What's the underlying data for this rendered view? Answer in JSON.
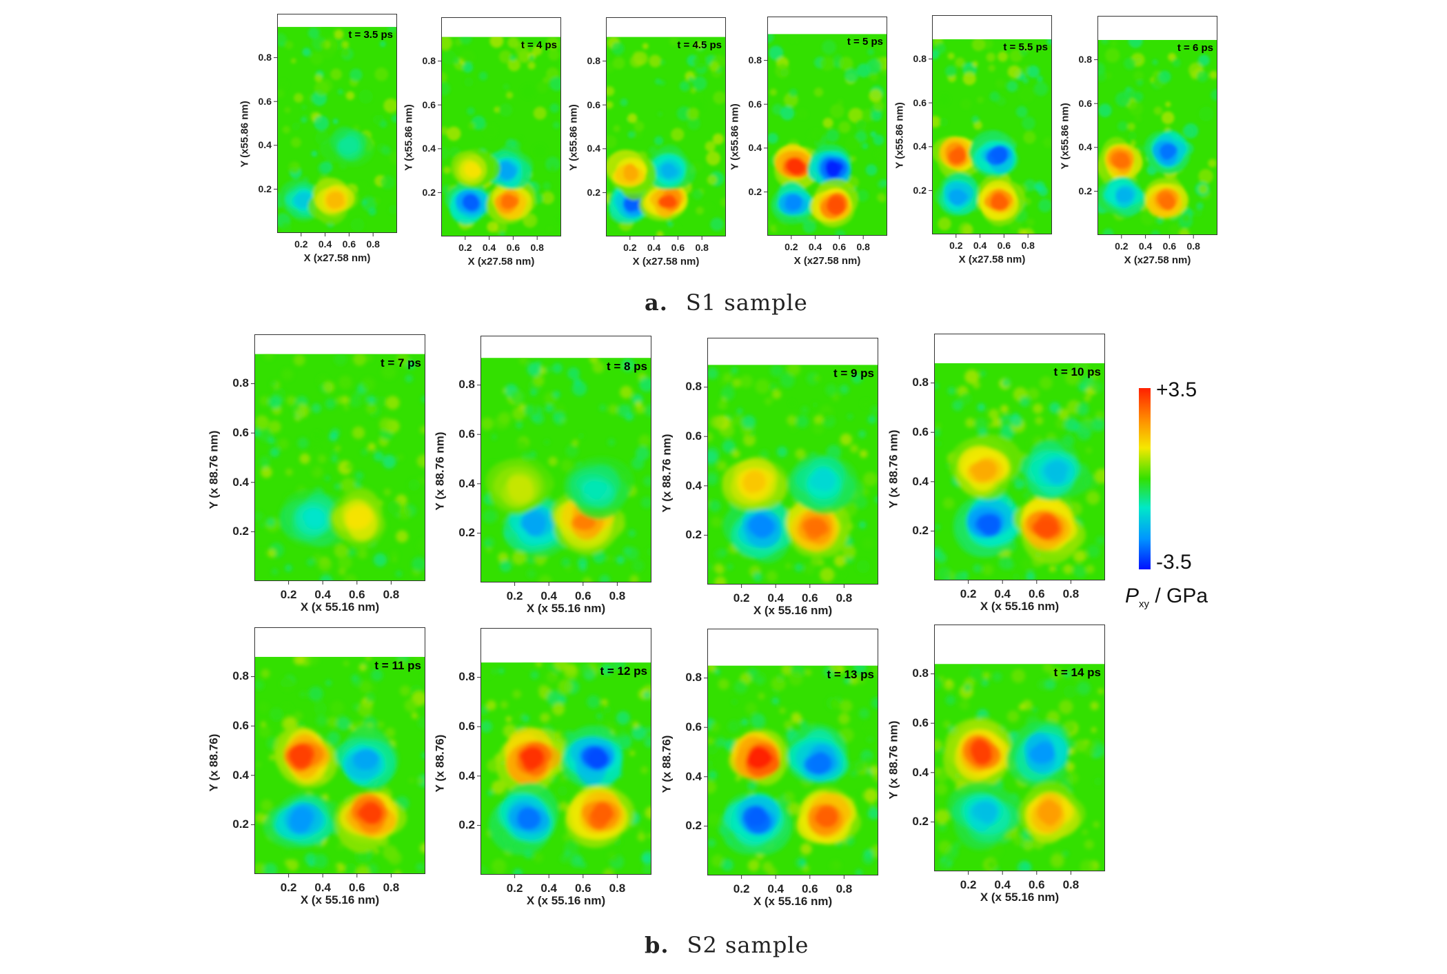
{
  "figure": {
    "caption_a_letter": "a.",
    "caption_a_text": "S1 sample",
    "caption_b_letter": "b.",
    "caption_b_text": "S2 sample"
  },
  "colorbar": {
    "max_label": "+3.5",
    "min_label": "-3.5",
    "title_symbol": "P",
    "title_subscript": "xy",
    "title_unit": " / GPa",
    "colors": [
      "#ff2000",
      "#ff8a00",
      "#f5e800",
      "#33e000",
      "#00e8c8",
      "#0096ff",
      "#0010ff"
    ]
  },
  "chart_data": [
    {
      "type": "heatmap",
      "sample": "S1",
      "title": "t = 3.5 ps",
      "xlabel": "X (x27.58 nm)",
      "ylabel": "Y (x55.86 nm)",
      "xticks": [
        "0.2",
        "0.4",
        "0.6",
        "0.8"
      ],
      "yticks": [
        "0.2",
        "0.4",
        "0.6",
        "0.8"
      ],
      "ylim_filled": 0.94,
      "lobes": [
        {
          "x": 0.22,
          "y": 0.15,
          "v": -0.45
        },
        {
          "x": 0.48,
          "y": 0.15,
          "v": 0.5
        },
        {
          "x": 0.6,
          "y": 0.4,
          "v": -0.25
        }
      ]
    },
    {
      "type": "heatmap",
      "sample": "S1",
      "title": "t = 4 ps",
      "xlabel": "X (x27.58 nm)",
      "ylabel": "Y (x55.86 nm)",
      "xticks": [
        "0.2",
        "0.4",
        "0.6",
        "0.8"
      ],
      "yticks": [
        "0.2",
        "0.4",
        "0.6",
        "0.8"
      ],
      "ylim_filled": 0.91,
      "lobes": [
        {
          "x": 0.24,
          "y": 0.15,
          "v": -0.8
        },
        {
          "x": 0.57,
          "y": 0.16,
          "v": 0.75
        },
        {
          "x": 0.55,
          "y": 0.3,
          "v": -0.6
        },
        {
          "x": 0.25,
          "y": 0.3,
          "v": 0.35
        }
      ]
    },
    {
      "type": "heatmap",
      "sample": "S1",
      "title": "t = 4.5 ps",
      "xlabel": "X (x27.58 nm)",
      "ylabel": "Y (x55.86 nm)",
      "xticks": [
        "0.2",
        "0.4",
        "0.6",
        "0.8"
      ],
      "yticks": [
        "0.2",
        "0.4",
        "0.6",
        "0.8"
      ],
      "ylim_filled": 0.91,
      "lobes": [
        {
          "x": 0.22,
          "y": 0.15,
          "v": -0.8
        },
        {
          "x": 0.52,
          "y": 0.16,
          "v": 0.85
        },
        {
          "x": 0.52,
          "y": 0.3,
          "v": -0.55
        },
        {
          "x": 0.2,
          "y": 0.29,
          "v": 0.55
        }
      ]
    },
    {
      "type": "heatmap",
      "sample": "S1",
      "title": "t = 5 ps",
      "xlabel": "X (x27.58 nm)",
      "ylabel": "Y (x55.86 nm)",
      "xticks": [
        "0.2",
        "0.4",
        "0.6",
        "0.8"
      ],
      "yticks": [
        "0.2",
        "0.4",
        "0.6",
        "0.8"
      ],
      "ylim_filled": 0.92,
      "lobes": [
        {
          "x": 0.24,
          "y": 0.32,
          "v": 0.95
        },
        {
          "x": 0.55,
          "y": 0.31,
          "v": -0.95
        },
        {
          "x": 0.22,
          "y": 0.15,
          "v": -0.7
        },
        {
          "x": 0.56,
          "y": 0.14,
          "v": 0.85
        }
      ]
    },
    {
      "type": "heatmap",
      "sample": "S1",
      "title": "t = 5.5 ps",
      "xlabel": "X (x27.58 nm)",
      "ylabel": "Y (x55.86 nm)",
      "xticks": [
        "0.2",
        "0.4",
        "0.6",
        "0.8"
      ],
      "yticks": [
        "0.2",
        "0.4",
        "0.6",
        "0.8"
      ],
      "ylim_filled": 0.89,
      "lobes": [
        {
          "x": 0.22,
          "y": 0.36,
          "v": 0.8
        },
        {
          "x": 0.55,
          "y": 0.36,
          "v": -0.8
        },
        {
          "x": 0.22,
          "y": 0.18,
          "v": -0.6
        },
        {
          "x": 0.56,
          "y": 0.15,
          "v": 0.8
        }
      ]
    },
    {
      "type": "heatmap",
      "sample": "S1",
      "title": "t = 6 ps",
      "xlabel": "X (x27.58 nm)",
      "ylabel": "Y (x55.86 nm)",
      "xticks": [
        "0.2",
        "0.4",
        "0.6",
        "0.8"
      ],
      "yticks": [
        "0.2",
        "0.4",
        "0.6",
        "0.8"
      ],
      "ylim_filled": 0.89,
      "lobes": [
        {
          "x": 0.2,
          "y": 0.34,
          "v": 0.75
        },
        {
          "x": 0.58,
          "y": 0.38,
          "v": -0.75
        },
        {
          "x": 0.22,
          "y": 0.18,
          "v": -0.55
        },
        {
          "x": 0.58,
          "y": 0.16,
          "v": 0.75
        }
      ]
    },
    {
      "type": "heatmap",
      "sample": "S2",
      "title": "t = 7 ps",
      "xlabel": "X (x 55.16 nm)",
      "ylabel": "Y (x 88.76 nm)",
      "xticks": [
        "0.2",
        "0.4",
        "0.6",
        "0.8"
      ],
      "yticks": [
        "0.2",
        "0.4",
        "0.6",
        "0.8"
      ],
      "ylim_filled": 0.92,
      "lobes": [
        {
          "x": 0.35,
          "y": 0.25,
          "v": -0.35
        },
        {
          "x": 0.6,
          "y": 0.25,
          "v": 0.35
        }
      ]
    },
    {
      "type": "heatmap",
      "sample": "S2",
      "title": "t = 8 ps",
      "xlabel": "X (x 55.16 nm)",
      "ylabel": "Y (x 88.76 nm)",
      "xticks": [
        "0.2",
        "0.4",
        "0.6",
        "0.8"
      ],
      "yticks": [
        "0.2",
        "0.4",
        "0.6",
        "0.8"
      ],
      "ylim_filled": 0.91,
      "lobes": [
        {
          "x": 0.32,
          "y": 0.24,
          "v": -0.6
        },
        {
          "x": 0.62,
          "y": 0.25,
          "v": 0.7
        },
        {
          "x": 0.68,
          "y": 0.38,
          "v": -0.3
        },
        {
          "x": 0.22,
          "y": 0.38,
          "v": 0.25
        }
      ]
    },
    {
      "type": "heatmap",
      "sample": "S2",
      "title": "t = 9 ps",
      "xlabel": "X (x 55.16 nm)",
      "ylabel": "Y (x 88.76 nm)",
      "xticks": [
        "0.2",
        "0.4",
        "0.6",
        "0.8"
      ],
      "yticks": [
        "0.2",
        "0.4",
        "0.6",
        "0.8"
      ],
      "ylim_filled": 0.89,
      "lobes": [
        {
          "x": 0.32,
          "y": 0.23,
          "v": -0.7
        },
        {
          "x": 0.64,
          "y": 0.23,
          "v": 0.75
        },
        {
          "x": 0.68,
          "y": 0.42,
          "v": -0.4
        },
        {
          "x": 0.27,
          "y": 0.42,
          "v": 0.45
        }
      ]
    },
    {
      "type": "heatmap",
      "sample": "S2",
      "title": "t = 10 ps",
      "xlabel": "X (x 55.16 nm)",
      "ylabel": "Y (x 88.76 nm)",
      "xticks": [
        "0.2",
        "0.4",
        "0.6",
        "0.8"
      ],
      "yticks": [
        "0.2",
        "0.4",
        "0.6",
        "0.8"
      ],
      "ylim_filled": 0.88,
      "lobes": [
        {
          "x": 0.32,
          "y": 0.23,
          "v": -0.8
        },
        {
          "x": 0.66,
          "y": 0.22,
          "v": 0.85
        },
        {
          "x": 0.7,
          "y": 0.44,
          "v": -0.5
        },
        {
          "x": 0.3,
          "y": 0.45,
          "v": 0.55
        }
      ]
    },
    {
      "type": "heatmap",
      "sample": "S2",
      "title": "t = 11 ps",
      "xlabel": "X (x 55.16 nm)",
      "ylabel": "Y (x 88.76)",
      "xticks": [
        "0.2",
        "0.4",
        "0.6",
        "0.8"
      ],
      "yticks": [
        "0.2",
        "0.4",
        "0.6",
        "0.8"
      ],
      "ylim_filled": 0.88,
      "lobes": [
        {
          "x": 0.28,
          "y": 0.48,
          "v": 0.9
        },
        {
          "x": 0.65,
          "y": 0.46,
          "v": -0.6
        },
        {
          "x": 0.28,
          "y": 0.22,
          "v": -0.65
        },
        {
          "x": 0.68,
          "y": 0.24,
          "v": 0.9
        }
      ]
    },
    {
      "type": "heatmap",
      "sample": "S2",
      "title": "t = 12 ps",
      "xlabel": "X (x 55.16 nm)",
      "ylabel": "Y (x 88.76)",
      "xticks": [
        "0.2",
        "0.4",
        "0.6",
        "0.8"
      ],
      "yticks": [
        "0.2",
        "0.4",
        "0.6",
        "0.8"
      ],
      "ylim_filled": 0.86,
      "lobes": [
        {
          "x": 0.3,
          "y": 0.47,
          "v": 0.95
        },
        {
          "x": 0.67,
          "y": 0.47,
          "v": -0.85
        },
        {
          "x": 0.28,
          "y": 0.23,
          "v": -0.75
        },
        {
          "x": 0.7,
          "y": 0.24,
          "v": 0.8
        }
      ]
    },
    {
      "type": "heatmap",
      "sample": "S2",
      "title": "t = 13 ps",
      "xlabel": "X (x 55.16 nm)",
      "ylabel": "Y (x 88.76)",
      "xticks": [
        "0.2",
        "0.4",
        "0.6",
        "0.8"
      ],
      "yticks": [
        "0.2",
        "0.4",
        "0.6",
        "0.8"
      ],
      "ylim_filled": 0.85,
      "lobes": [
        {
          "x": 0.3,
          "y": 0.47,
          "v": 1.0
        },
        {
          "x": 0.65,
          "y": 0.46,
          "v": -0.75
        },
        {
          "x": 0.28,
          "y": 0.23,
          "v": -0.8
        },
        {
          "x": 0.7,
          "y": 0.23,
          "v": 0.8
        }
      ]
    },
    {
      "type": "heatmap",
      "sample": "S2",
      "title": "t = 14 ps",
      "xlabel": "X (x 55.16 nm)",
      "ylabel": "Y (x 88.76 nm)",
      "xticks": [
        "0.2",
        "0.4",
        "0.6",
        "0.8"
      ],
      "yticks": [
        "0.2",
        "0.4",
        "0.6",
        "0.8"
      ],
      "ylim_filled": 0.84,
      "lobes": [
        {
          "x": 0.28,
          "y": 0.48,
          "v": 0.9
        },
        {
          "x": 0.63,
          "y": 0.48,
          "v": -0.65
        },
        {
          "x": 0.3,
          "y": 0.24,
          "v": -0.5
        },
        {
          "x": 0.68,
          "y": 0.24,
          "v": 0.6
        }
      ]
    }
  ]
}
